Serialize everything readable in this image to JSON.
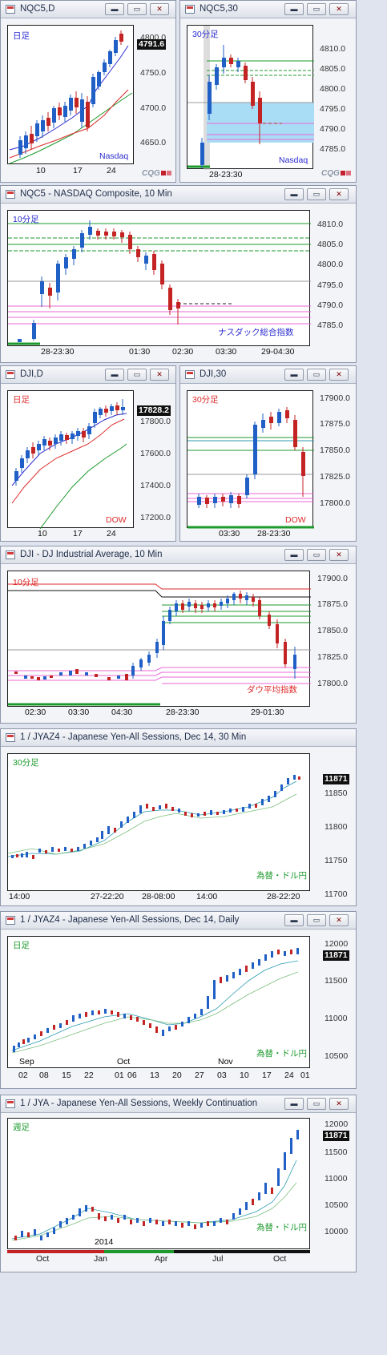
{
  "windows": {
    "w1": {
      "title": "NQC5,D",
      "period": "日足",
      "label": "Nasdaq",
      "yticks": [
        "4800.0",
        "4750.0",
        "4700.0",
        "4650.0"
      ],
      "xticks": [
        "10",
        "17",
        "24"
      ],
      "price": "4791.6"
    },
    "w2": {
      "title": "NQC5,30",
      "period": "30分足",
      "label": "Nasdaq",
      "yticks": [
        "4810.0",
        "4805.0",
        "4800.0",
        "4795.0",
        "4790.0",
        "4785.0"
      ],
      "xticks": [
        "28-23:30"
      ]
    },
    "w3": {
      "title": "NQC5 - NASDAQ Composite, 10 Min",
      "period": "10分足",
      "label": "ナスダック総合指数",
      "yticks": [
        "4810.0",
        "4805.0",
        "4800.0",
        "4795.0",
        "4790.0",
        "4785.0"
      ],
      "xticks": [
        "28-23:30",
        "01:30",
        "02:30",
        "03:30",
        "29-04:30"
      ]
    },
    "w4": {
      "title": "DJI,D",
      "period": "日足",
      "label": "DOW",
      "yticks": [
        "17800.0",
        "17600.0",
        "17400.0",
        "17200.0"
      ],
      "xticks": [
        "10",
        "17",
        "24"
      ],
      "price": "17828.2"
    },
    "w5": {
      "title": "DJI,30",
      "period": "30分足",
      "label": "DOW",
      "yticks": [
        "17900.0",
        "17875.0",
        "17850.0",
        "17825.0",
        "17800.0"
      ],
      "xticks": [
        "03:30",
        "28-23:30"
      ]
    },
    "w6": {
      "title": "DJI - DJ Industrial Average, 10 Min",
      "period": "10分足",
      "label": "ダウ平均指数",
      "yticks": [
        "17900.0",
        "17875.0",
        "17850.0",
        "17825.0",
        "17800.0"
      ],
      "xticks": [
        "02:30",
        "03:30",
        "04:30",
        "28-23:30",
        "29-01:30"
      ]
    },
    "w7": {
      "title": "1 / JYAZ4 - Japanese Yen-All Sessions, Dec 14, 30 Min",
      "period": "30分足",
      "label": "為替・ドル円",
      "yticks": [
        "11850",
        "11800",
        "11750",
        "11700"
      ],
      "xticks": [
        "14:00",
        "27-22:20",
        "28-08:00",
        "14:00",
        "28-22:20"
      ],
      "price": "11871"
    },
    "w8": {
      "title": "1 / JYAZ4 - Japanese Yen-All Sessions, Dec 14, Daily",
      "period": "日足",
      "label": "為替・ドル円",
      "yticks": [
        "12000",
        "11500",
        "11000",
        "10500"
      ],
      "months": [
        "Sep",
        "Oct",
        "Nov"
      ],
      "xticks": [
        "02",
        "08",
        "15",
        "22",
        "01",
        "06",
        "13",
        "20",
        "27",
        "03",
        "10",
        "17",
        "24",
        "01"
      ],
      "price": "11871"
    },
    "w9": {
      "title": "1 / JYA - Japanese Yen-All Sessions, Weekly Continuation",
      "period": "週足",
      "label": "為替・ドル円",
      "yticks": [
        "12000",
        "11500",
        "11000",
        "10500",
        "10000"
      ],
      "year": "2014",
      "xticks": [
        "Oct",
        "Jan",
        "Apr",
        "Jul",
        "Oct"
      ],
      "price": "11871"
    }
  },
  "buttons": {
    "minimize": "▬",
    "restore": "▭",
    "close": "✕"
  },
  "logo": "CQG",
  "colors": {
    "up": "#1f5fc6",
    "down": "#c42323",
    "green": "#1d9a2c",
    "red": "#dd2a2a",
    "pink": "#e86ad6",
    "blue": "#2b2bd0",
    "zone": "#a9dcf5"
  }
}
